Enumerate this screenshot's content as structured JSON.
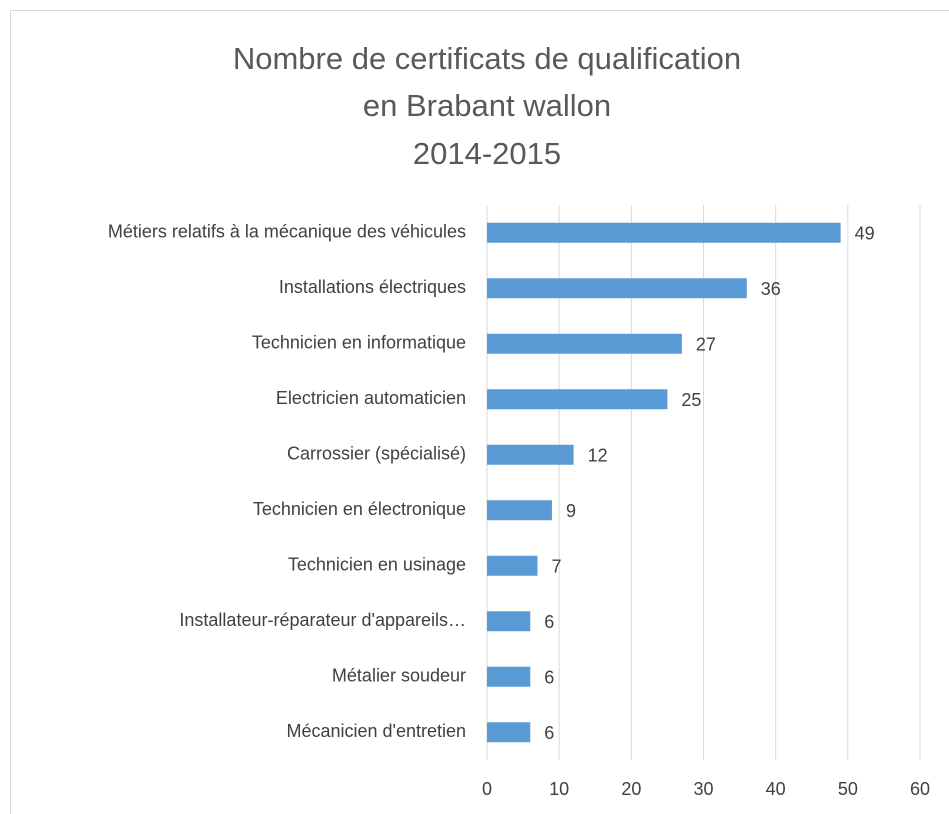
{
  "chart_data": {
    "type": "barh",
    "title": [
      "Nombre de certificats de qualification",
      "en Brabant wallon",
      "2014-2015"
    ],
    "categories": [
      "Métiers relatifs à la mécanique des véhicules",
      "Installations électriques",
      "Technicien  en informatique",
      "Electricien automaticien",
      "Carrossier (spécialisé)",
      "Technicien en électronique",
      "Technicien en usinage",
      "Installateur-réparateur d'appareils…",
      "Métalier soudeur",
      "Mécanicien d'entretien"
    ],
    "values": [
      49,
      36,
      27,
      25,
      12,
      9,
      7,
      6,
      6,
      6
    ],
    "color": "#5b9bd5",
    "xlim": [
      0,
      60
    ],
    "xticks": [
      0,
      10,
      20,
      30,
      40,
      50,
      60
    ],
    "grid": true
  }
}
